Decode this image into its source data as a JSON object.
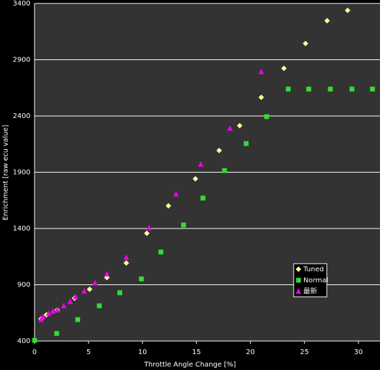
{
  "chart_data": {
    "type": "scatter",
    "x_label": "Throttle Angle Change [%]",
    "y_label": "Enrichment [raw ecu value]",
    "xlim": [
      0,
      32
    ],
    "xticks": [
      0,
      5,
      10,
      15,
      20,
      25,
      30
    ],
    "ylim": [
      400,
      3400
    ],
    "yticks": [
      400,
      900,
      1400,
      1900,
      2400,
      2900,
      3400
    ],
    "grid": true,
    "legend_position": "right",
    "series": [
      {
        "name": "Tuned",
        "color": "#ffff99",
        "marker": "diamond",
        "x": [
          0.6,
          1.1,
          2.1,
          3.7,
          5.1,
          6.7,
          8.5,
          10.4,
          12.4,
          14.9,
          17.1,
          19.0,
          21.0,
          23.1,
          25.1,
          27.1,
          29.0
        ],
        "values": [
          596,
          633,
          676,
          780,
          860,
          964,
          1093,
          1357,
          1602,
          1842,
          2093,
          2314,
          2566,
          2823,
          3044,
          3247,
          3339
        ]
      },
      {
        "name": "Normal",
        "color": "#33dd33",
        "marker": "square",
        "x": [
          0,
          2.05,
          4.0,
          6.0,
          7.9,
          9.9,
          11.7,
          13.8,
          15.6,
          17.6,
          19.6,
          21.5,
          23.5,
          25.4,
          27.4,
          29.4,
          31.3
        ],
        "values": [
          406,
          467,
          590,
          713,
          829,
          952,
          1191,
          1431,
          1670,
          1915,
          2155,
          2394,
          2639,
          2639,
          2639,
          2639,
          2639
        ]
      },
      {
        "name": "最新",
        "color": "#ee00ee",
        "marker": "triangle",
        "x": [
          0.6,
          0.8,
          1.3,
          1.7,
          2.1,
          2.7,
          3.3,
          3.8,
          4.6,
          5.6,
          6.7,
          8.5,
          10.6,
          13.1,
          15.4,
          18.1,
          21.0
        ],
        "values": [
          590,
          615,
          645,
          664,
          676,
          713,
          750,
          793,
          842,
          915,
          995,
          1142,
          1406,
          1707,
          1970,
          2290,
          2793
        ]
      }
    ]
  }
}
